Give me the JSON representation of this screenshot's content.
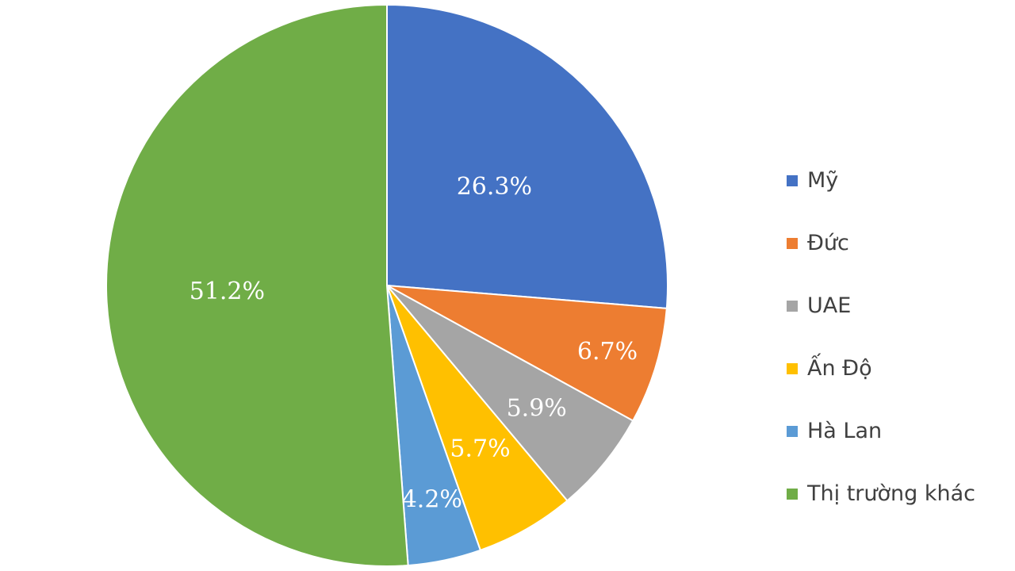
{
  "chart_data": {
    "type": "pie",
    "categories": [
      "Mỹ",
      "Đức",
      "UAE",
      "Ấn Độ",
      "Hà Lan",
      "Thị trường khác"
    ],
    "values": [
      26.3,
      6.7,
      5.9,
      5.7,
      4.2,
      51.2
    ],
    "labels": [
      "26.3%",
      "6.7%",
      "5.9%",
      "5.7%",
      "4.2%",
      "51.2%"
    ],
    "colors": [
      "#4472C4",
      "#ED7D31",
      "#A5A5A5",
      "#FFC000",
      "#5B9BD5",
      "#70AD47"
    ],
    "start_angle": "12 o'clock",
    "direction": "clockwise",
    "legend_position": "right"
  }
}
